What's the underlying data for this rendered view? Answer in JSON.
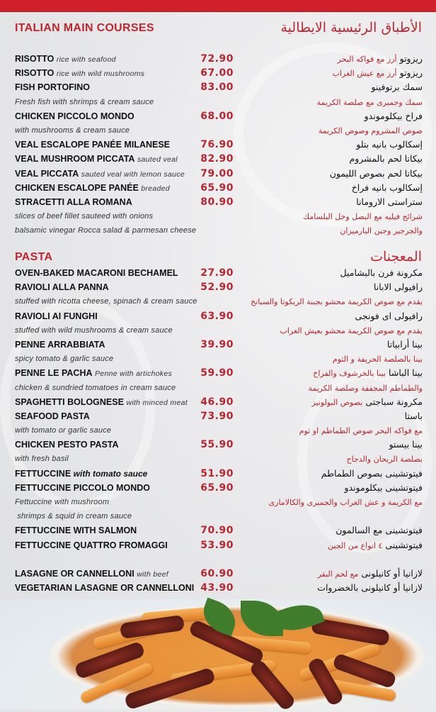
{
  "colors": {
    "accent": "#c0262f",
    "price": "#b8262f",
    "topbar": "#d0202c"
  },
  "sections": [
    {
      "title": "ITALIAN MAIN COURSES",
      "title_ar": "الأطباق الرئيسية الايطالية",
      "items": [
        {
          "name": "RISOTTO",
          "desc": "rice with seafood",
          "price": "72.90",
          "ar": "ريزوتو",
          "ar_desc": "أرز مع فواكه البحر"
        },
        {
          "name": "RISOTTO",
          "desc": "rice with wild mushrooms",
          "price": "67.00",
          "ar": "ريزوتو",
          "ar_desc": "أرز مع عيش الغراب"
        },
        {
          "name": "FISH PORTOFINO",
          "price": "83.00",
          "ar": "سمك برتوفينو"
        },
        {
          "note": "Fresh fish with shrimps & cream sauce",
          "ar_desc": "سمك وجمبرى مع صلصة الكريمة"
        },
        {
          "name": "CHICKEN PICCOLO MONDO",
          "price": "68.00",
          "ar": "فراخ بيكلوموندو"
        },
        {
          "note": "with mushrooms & cream sauce",
          "ar_desc": "صوص المشروم وصوص الكريمة"
        },
        {
          "name": "VEAL ESCALOPE PANÉE MILANESE",
          "price": "76.90",
          "ar": "إسكالوب بانيه بتلو"
        },
        {
          "name": "VEAL MUSHROOM PICCATA",
          "desc": "sauted veal",
          "price": "82.90",
          "ar": "بيكاتا لحم بالمشروم"
        },
        {
          "name": "VEAL PICCATA",
          "desc": "sauted veal with lemon sauce",
          "price": "79.00",
          "ar": "بيكاتا لحم بصوص الليمون"
        },
        {
          "name": "CHICKEN ESCALOPE PANÉE",
          "desc": "breaded",
          "price": "65.90",
          "ar": "إسكالوب بانيه فراخ"
        },
        {
          "name": "STRACETTI ALLA ROMANA",
          "price": "80.90",
          "ar": "ستراستى الارومانا"
        },
        {
          "note": "slices of beef fillet sauteed with onions",
          "ar_desc": "شرائح فيليه مع البصل وخل البلسامك"
        },
        {
          "note": "balsamic vinegar Rocca salad & parmesan cheese",
          "ar_desc": "والجرجير وجبن البارميزان"
        }
      ]
    },
    {
      "title": "PASTA",
      "title_ar": "المعجنات",
      "items": [
        {
          "name": "OVEN-BAKED MACARONI BECHAMEL",
          "price": "27.90",
          "ar": "مكرونة فرن بالبشاميل"
        },
        {
          "name": "RAVIOLI ALLA PANNA",
          "price": "52.90",
          "ar": "رافيولى الابانا"
        },
        {
          "note": "stuffed with ricotta cheese, spinach & cream sauce",
          "ar_desc": "يقدم مع صوص الكريمة محشو بجبنة الريكوتا والسبانخ"
        },
        {
          "name": "RAVIOLI AI FUNGHI",
          "price": "63.90",
          "ar": "رافيولى اى فونجى"
        },
        {
          "note": "stuffed with wild mushrooms & cream sauce",
          "ar_desc": "يقدم مع صوص الكريمة محشو بعيش الغراب"
        },
        {
          "name": "PENNE ARRABBIATA",
          "price": "39.90",
          "ar": "بينا أرابياتا"
        },
        {
          "note": "spicy tomato & garlic sauce",
          "ar_desc": "بينا بالصلصة الحريفة و الثوم"
        },
        {
          "name": "PENNE LE PACHA",
          "desc": "Penne with artichokes",
          "price": "59.90",
          "ar": "بينا الباشا",
          "ar_desc": "بينا بالخرشوف والفراخ"
        },
        {
          "note": "chicken & sundried tomatoes in cream sauce",
          "ar_desc": "والطماطم المجففة وصلصة الكريمة"
        },
        {
          "name": "SPAGHETTI BOLOGNESE",
          "desc": "with minced meat",
          "price": "46.90",
          "ar": "مكرونة سباجتى",
          "ar_desc": "بصوص البولونيز"
        },
        {
          "name": "SEAFOOD PASTA",
          "price": "73.90",
          "ar": "باستا"
        },
        {
          "note": "with tomato or garlic sauce",
          "ar_desc": "مع فواكه البحر  صوص الطماطم او ثوم"
        },
        {
          "name": "CHICKEN PESTO PASTA",
          "price": "55.90",
          "ar": "بينا بيستو"
        },
        {
          "note": "with fresh basil",
          "ar_desc": "بصلصة الريحان والدجاج"
        },
        {
          "name": "FETTUCCINE",
          "desc": "with tomato sauce",
          "desc_bold": true,
          "price": "51.90",
          "ar": "فيتوتشينى بصوص الطماطم"
        },
        {
          "name": "FETTUCCINE PICCOLO MONDO",
          "price": "65.90",
          "ar": "فيتوتشينى بيكلوموندو"
        },
        {
          "note": "Fettuccine with mushroom",
          "ar_desc": "مع الكريمة و عش الغراب والجمبرى والكالامارى"
        },
        {
          "note": " shrimps & squid in cream sauce"
        },
        {
          "name": "FETTUCCINE WITH SALMON",
          "price": "70.90",
          "ar": "فيتوتشينى مع السالمون"
        },
        {
          "name": "FETTUCCINE QUATTRO FROMAGGI",
          "price": "53.90",
          "ar": "فيتوتشينى",
          "ar_desc": "٤ انواع من الجبن"
        }
      ]
    },
    {
      "items": [
        {
          "name": "LASAGNE OR CANNELLONI",
          "desc": "with beef",
          "price": "60.90",
          "ar": "لازانيا  أو كانيلونى",
          "ar_desc": "مع لحم البقر"
        },
        {
          "name": "VEGETARIAN LASAGNE OR CANNELLONI",
          "price": "43.90",
          "ar": "لازانيا أو كانيلونى بالخضروات"
        }
      ]
    }
  ],
  "photo": {
    "subject": "penne-pasta-with-sundried-tomatoes-photo"
  }
}
